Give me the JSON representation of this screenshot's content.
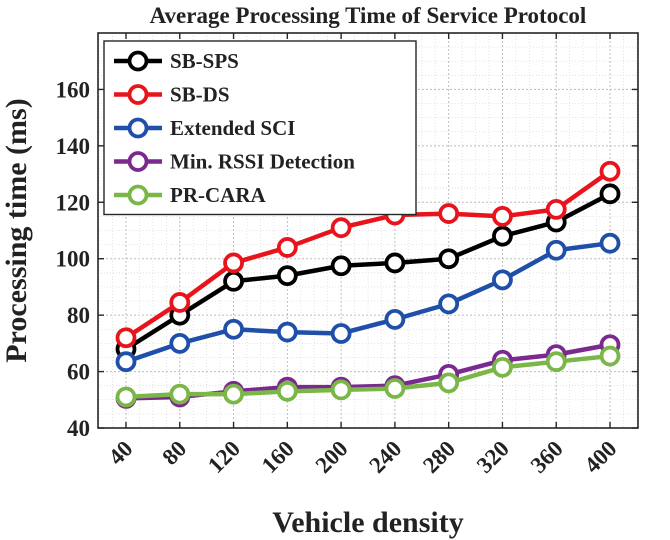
{
  "chart_data": {
    "type": "line",
    "title": "Average Processing Time of Service Protocol",
    "xlabel": "Vehicle density",
    "ylabel": "Processing time (ms)",
    "categories": [
      "40",
      "80",
      "120",
      "160",
      "200",
      "240",
      "280",
      "320",
      "360",
      "400"
    ],
    "ylim": [
      40,
      180
    ],
    "yticks": [
      40,
      60,
      80,
      100,
      120,
      140,
      160
    ],
    "grid": true,
    "legend_position": "top-left",
    "series": [
      {
        "name": "SB-SPS",
        "color": "#000000",
        "values": [
          68,
          80,
          92,
          94,
          97.5,
          98.5,
          100,
          108,
          113,
          123
        ]
      },
      {
        "name": "SB-DS",
        "color": "#e8141c",
        "values": [
          72,
          84.5,
          98.5,
          104,
          111,
          115.5,
          116,
          115,
          117.5,
          131
        ]
      },
      {
        "name": "Extended SCI",
        "color": "#1f4fa8",
        "values": [
          63.5,
          70,
          75,
          74,
          73.5,
          78.5,
          84,
          92.5,
          103,
          105.5
        ]
      },
      {
        "name": "Min. RSSI Detection",
        "color": "#7a2a8e",
        "values": [
          50.5,
          51,
          53,
          54.5,
          54.5,
          55,
          59,
          64,
          66,
          69.5
        ]
      },
      {
        "name": "PR-CARA",
        "color": "#7ab648",
        "values": [
          51,
          52,
          52,
          53,
          53.5,
          54,
          56,
          61.5,
          63.5,
          65.5
        ]
      }
    ]
  }
}
